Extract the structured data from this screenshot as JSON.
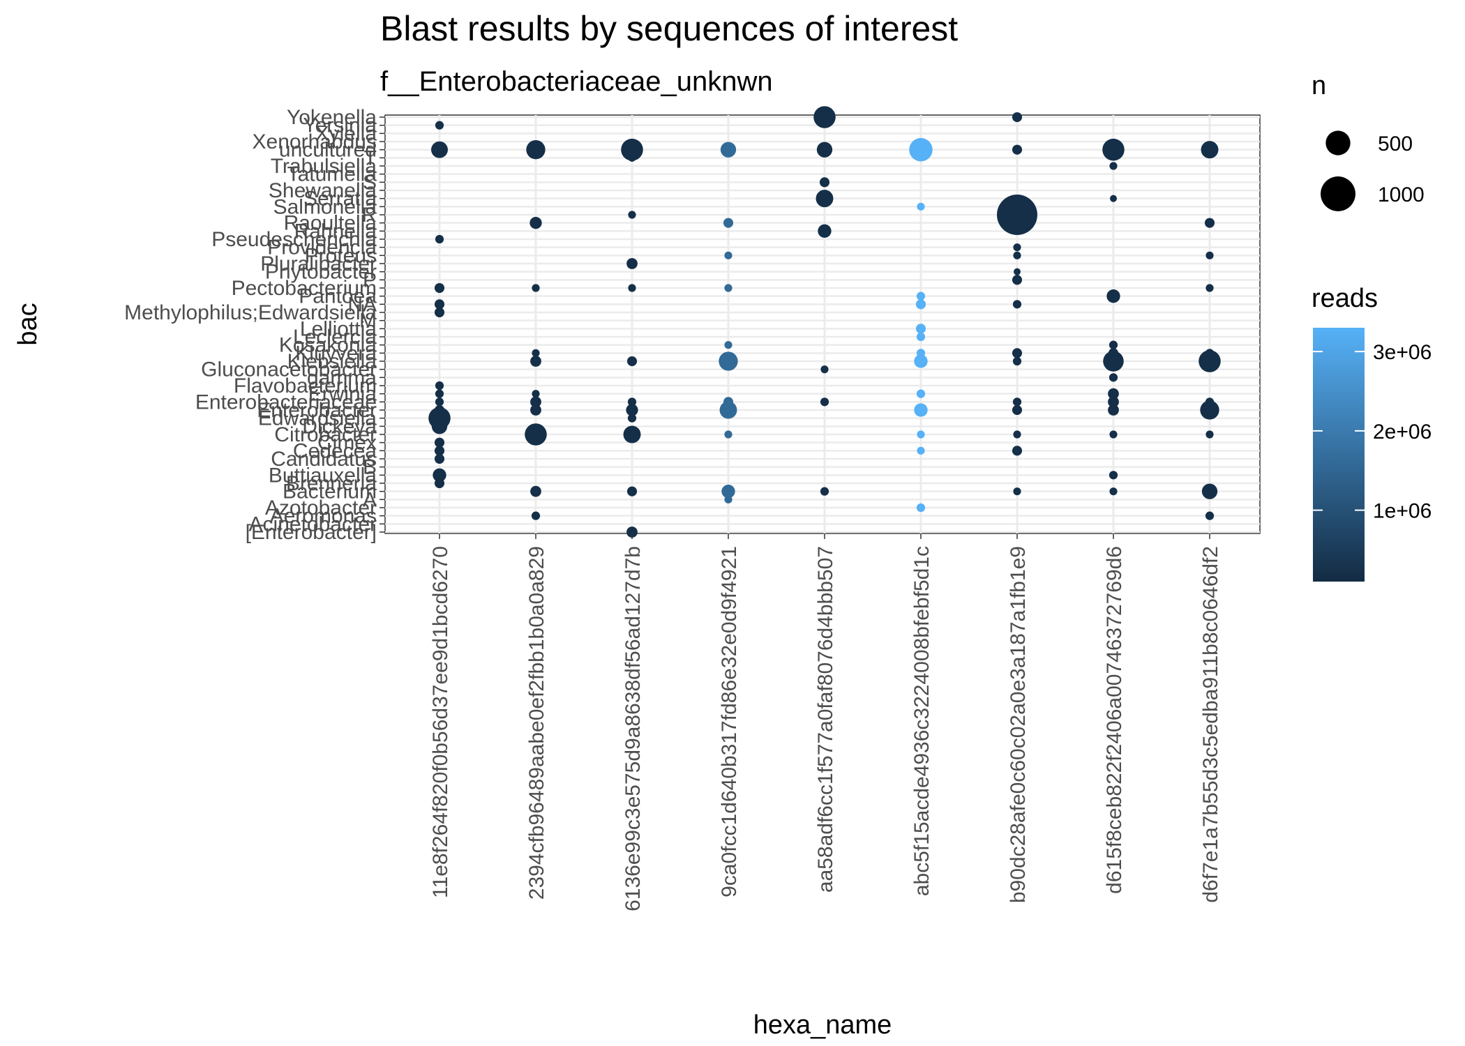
{
  "chart_data": {
    "type": "scatter",
    "title": "Blast results by sequences of interest",
    "subtitle": "f__Enterobacteriaceae_unknwn",
    "xlabel": "hexa_name",
    "ylabel": "bac",
    "grid": true,
    "legend_placement": "right",
    "x_categories": [
      "11e8f264f820f0b56d37ee9d1bcd6270",
      "2394cfb96489aabe0ef2fbb1b0a0a829",
      "6136e99c3e575d9a8638df56ad127d7b",
      "9ca0fcc1d640b317fd86e32e0d9f4921",
      "aa58adf6cc1f577a0faf8076d4bbb507",
      "abc5f15acde4936c3224008bfebf5d1c",
      "b90dc28afe0c60c02a0e3a187a1fb1e9",
      "d615f8ceb822f2406a00746372769d6",
      "d6f7e1a7b55d3c5edba911b8c0646df2"
    ],
    "y_categories": [
      "[Enterobacter]",
      "Acinetobacter",
      "Aeromonas",
      "Azotobacter",
      "A",
      "Bacterium",
      "Brenneria",
      "Buttiauxella",
      "B",
      "Candidatus",
      "Cedecea",
      "Cimex",
      "Citrobacter",
      "Dickeya",
      "Edwardsiella",
      "Enterobacter",
      "Enterobacteriaceae",
      "Erwinia",
      "Flavobacterium",
      "gamma",
      "Gluconacetobacter",
      "Klebsiella",
      "Kluyvera",
      "Kosakonia",
      "Leclercia",
      "Lelliottia",
      "M",
      "Methylophilus;Edwardsiella",
      "NA",
      "Pantoea",
      "Pectobacterium",
      "P",
      "Phytobacter",
      "Pluralibacter",
      "Proteus",
      "Providencia",
      "Pseudescherichia",
      "Rahnella",
      "Raoultella",
      "R",
      "Salmonella",
      "Serratia",
      "Shewanella",
      "S",
      "Tatumella",
      "Trabulsiella",
      "T",
      "uncultured",
      "Xenorhabdus",
      "Xylella",
      "Yersinia",
      "Yokenella"
    ],
    "size_legend": {
      "title": "n",
      "breaks": [
        500,
        1000
      ]
    },
    "color_legend": {
      "title": "reads",
      "breaks": [
        1000000,
        2000000,
        3000000
      ],
      "labels": [
        "1e+06",
        "2e+06",
        "3e+06"
      ],
      "range": [
        100000,
        3300000
      ],
      "low_color": "#132B43",
      "high_color": "#56B1F7"
    },
    "points": [
      {
        "x": "11e8f264f820f0b56d37ee9d1bcd6270",
        "y": "Yersinia",
        "n": 60,
        "reads": 200000
      },
      {
        "x": "11e8f264f820f0b56d37ee9d1bcd6270",
        "y": "uncultured",
        "n": 230,
        "reads": 200000
      },
      {
        "x": "11e8f264f820f0b56d37ee9d1bcd6270",
        "y": "Pseudescherichia",
        "n": 60,
        "reads": 200000
      },
      {
        "x": "11e8f264f820f0b56d37ee9d1bcd6270",
        "y": "Pectobacterium",
        "n": 80,
        "reads": 200000
      },
      {
        "x": "11e8f264f820f0b56d37ee9d1bcd6270",
        "y": "NA",
        "n": 80,
        "reads": 200000
      },
      {
        "x": "11e8f264f820f0b56d37ee9d1bcd6270",
        "y": "Methylophilus;Edwardsiella",
        "n": 80,
        "reads": 200000
      },
      {
        "x": "11e8f264f820f0b56d37ee9d1bcd6270",
        "y": "Flavobacterium",
        "n": 60,
        "reads": 200000
      },
      {
        "x": "11e8f264f820f0b56d37ee9d1bcd6270",
        "y": "Erwinia",
        "n": 60,
        "reads": 200000
      },
      {
        "x": "11e8f264f820f0b56d37ee9d1bcd6270",
        "y": "Enterobacteriaceae",
        "n": 60,
        "reads": 200000
      },
      {
        "x": "11e8f264f820f0b56d37ee9d1bcd6270",
        "y": "Enterobacter",
        "n": 80,
        "reads": 200000
      },
      {
        "x": "11e8f264f820f0b56d37ee9d1bcd6270",
        "y": "Edwardsiella",
        "n": 400,
        "reads": 200000
      },
      {
        "x": "11e8f264f820f0b56d37ee9d1bcd6270",
        "y": "Dickeya",
        "n": 200,
        "reads": 200000
      },
      {
        "x": "11e8f264f820f0b56d37ee9d1bcd6270",
        "y": "Cimex",
        "n": 80,
        "reads": 200000
      },
      {
        "x": "11e8f264f820f0b56d37ee9d1bcd6270",
        "y": "Cedecea",
        "n": 80,
        "reads": 200000
      },
      {
        "x": "11e8f264f820f0b56d37ee9d1bcd6270",
        "y": "Candidatus",
        "n": 80,
        "reads": 200000
      },
      {
        "x": "11e8f264f820f0b56d37ee9d1bcd6270",
        "y": "Buttiauxella",
        "n": 150,
        "reads": 200000
      },
      {
        "x": "11e8f264f820f0b56d37ee9d1bcd6270",
        "y": "Brenneria",
        "n": 80,
        "reads": 200000
      },
      {
        "x": "2394cfb96489aabe0ef2fbb1b0a0a829",
        "y": "uncultured",
        "n": 300,
        "reads": 200000
      },
      {
        "x": "2394cfb96489aabe0ef2fbb1b0a0a829",
        "y": "Raoultella",
        "n": 120,
        "reads": 200000
      },
      {
        "x": "2394cfb96489aabe0ef2fbb1b0a0a829",
        "y": "Pectobacterium",
        "n": 50,
        "reads": 200000
      },
      {
        "x": "2394cfb96489aabe0ef2fbb1b0a0a829",
        "y": "Kluyvera",
        "n": 50,
        "reads": 200000
      },
      {
        "x": "2394cfb96489aabe0ef2fbb1b0a0a829",
        "y": "Klebsiella",
        "n": 100,
        "reads": 200000
      },
      {
        "x": "2394cfb96489aabe0ef2fbb1b0a0a829",
        "y": "Erwinia",
        "n": 50,
        "reads": 200000
      },
      {
        "x": "2394cfb96489aabe0ef2fbb1b0a0a829",
        "y": "Enterobacteriaceae",
        "n": 100,
        "reads": 200000
      },
      {
        "x": "2394cfb96489aabe0ef2fbb1b0a0a829",
        "y": "Enterobacter",
        "n": 100,
        "reads": 200000
      },
      {
        "x": "2394cfb96489aabe0ef2fbb1b0a0a829",
        "y": "Citrobacter",
        "n": 400,
        "reads": 200000
      },
      {
        "x": "2394cfb96489aabe0ef2fbb1b0a0a829",
        "y": "Bacterium",
        "n": 100,
        "reads": 200000
      },
      {
        "x": "2394cfb96489aabe0ef2fbb1b0a0a829",
        "y": "Aeromonas",
        "n": 60,
        "reads": 200000
      },
      {
        "x": "6136e99c3e575d9a8638df56ad127d7b",
        "y": "uncultured",
        "n": 400,
        "reads": 200000
      },
      {
        "x": "6136e99c3e575d9a8638df56ad127d7b",
        "y": "T",
        "n": 50,
        "reads": 200000
      },
      {
        "x": "6136e99c3e575d9a8638df56ad127d7b",
        "y": "R",
        "n": 50,
        "reads": 200000
      },
      {
        "x": "6136e99c3e575d9a8638df56ad127d7b",
        "y": "Pluralibacter",
        "n": 100,
        "reads": 200000
      },
      {
        "x": "6136e99c3e575d9a8638df56ad127d7b",
        "y": "Pectobacterium",
        "n": 50,
        "reads": 200000
      },
      {
        "x": "6136e99c3e575d9a8638df56ad127d7b",
        "y": "Klebsiella",
        "n": 80,
        "reads": 200000
      },
      {
        "x": "6136e99c3e575d9a8638df56ad127d7b",
        "y": "Enterobacteriaceae",
        "n": 60,
        "reads": 200000
      },
      {
        "x": "6136e99c3e575d9a8638df56ad127d7b",
        "y": "Enterobacter",
        "n": 120,
        "reads": 200000
      },
      {
        "x": "6136e99c3e575d9a8638df56ad127d7b",
        "y": "Edwardsiella",
        "n": 60,
        "reads": 200000
      },
      {
        "x": "6136e99c3e575d9a8638df56ad127d7b",
        "y": "Citrobacter",
        "n": 250,
        "reads": 200000
      },
      {
        "x": "6136e99c3e575d9a8638df56ad127d7b",
        "y": "Bacterium",
        "n": 80,
        "reads": 200000
      },
      {
        "x": "6136e99c3e575d9a8638df56ad127d7b",
        "y": "[Enterobacter]",
        "n": 100,
        "reads": 200000
      },
      {
        "x": "9ca0fcc1d640b317fd86e32e0d9f4921",
        "y": "uncultured",
        "n": 200,
        "reads": 1600000
      },
      {
        "x": "9ca0fcc1d640b317fd86e32e0d9f4921",
        "y": "Raoultella",
        "n": 80,
        "reads": 1600000
      },
      {
        "x": "9ca0fcc1d640b317fd86e32e0d9f4921",
        "y": "Proteus",
        "n": 50,
        "reads": 1600000
      },
      {
        "x": "9ca0fcc1d640b317fd86e32e0d9f4921",
        "y": "Pectobacterium",
        "n": 50,
        "reads": 1600000
      },
      {
        "x": "9ca0fcc1d640b317fd86e32e0d9f4921",
        "y": "Kosakonia",
        "n": 50,
        "reads": 1600000
      },
      {
        "x": "9ca0fcc1d640b317fd86e32e0d9f4921",
        "y": "Klebsiella",
        "n": 300,
        "reads": 1600000
      },
      {
        "x": "9ca0fcc1d640b317fd86e32e0d9f4921",
        "y": "Enterobacteriaceae",
        "n": 80,
        "reads": 1600000
      },
      {
        "x": "9ca0fcc1d640b317fd86e32e0d9f4921",
        "y": "Enterobacter",
        "n": 250,
        "reads": 1600000
      },
      {
        "x": "9ca0fcc1d640b317fd86e32e0d9f4921",
        "y": "Citrobacter",
        "n": 50,
        "reads": 1600000
      },
      {
        "x": "9ca0fcc1d640b317fd86e32e0d9f4921",
        "y": "Bacterium",
        "n": 150,
        "reads": 1600000
      },
      {
        "x": "9ca0fcc1d640b317fd86e32e0d9f4921",
        "y": "A",
        "n": 50,
        "reads": 1600000
      },
      {
        "x": "aa58adf6cc1f577a0faf8076d4bbb507",
        "y": "Yokenella",
        "n": 400,
        "reads": 200000
      },
      {
        "x": "aa58adf6cc1f577a0faf8076d4bbb507",
        "y": "uncultured",
        "n": 200,
        "reads": 200000
      },
      {
        "x": "aa58adf6cc1f577a0faf8076d4bbb507",
        "y": "S",
        "n": 80,
        "reads": 200000
      },
      {
        "x": "aa58adf6cc1f577a0faf8076d4bbb507",
        "y": "Serratia",
        "n": 250,
        "reads": 200000
      },
      {
        "x": "aa58adf6cc1f577a0faf8076d4bbb507",
        "y": "Rahnella",
        "n": 150,
        "reads": 200000
      },
      {
        "x": "aa58adf6cc1f577a0faf8076d4bbb507",
        "y": "Gluconacetobacter",
        "n": 50,
        "reads": 200000
      },
      {
        "x": "aa58adf6cc1f577a0faf8076d4bbb507",
        "y": "Enterobacteriaceae",
        "n": 60,
        "reads": 200000
      },
      {
        "x": "aa58adf6cc1f577a0faf8076d4bbb507",
        "y": "Bacterium",
        "n": 60,
        "reads": 200000
      },
      {
        "x": "abc5f15acde4936c3224008bfebf5d1c",
        "y": "uncultured",
        "n": 450,
        "reads": 3300000
      },
      {
        "x": "abc5f15acde4936c3224008bfebf5d1c",
        "y": "Salmonella",
        "n": 50,
        "reads": 3300000
      },
      {
        "x": "abc5f15acde4936c3224008bfebf5d1c",
        "y": "Pantoea",
        "n": 60,
        "reads": 3300000
      },
      {
        "x": "abc5f15acde4936c3224008bfebf5d1c",
        "y": "NA",
        "n": 80,
        "reads": 3300000
      },
      {
        "x": "abc5f15acde4936c3224008bfebf5d1c",
        "y": "Lelliottia",
        "n": 80,
        "reads": 3300000
      },
      {
        "x": "abc5f15acde4936c3224008bfebf5d1c",
        "y": "Leclercia",
        "n": 60,
        "reads": 3300000
      },
      {
        "x": "abc5f15acde4936c3224008bfebf5d1c",
        "y": "Kluyvera",
        "n": 60,
        "reads": 3300000
      },
      {
        "x": "abc5f15acde4936c3224008bfebf5d1c",
        "y": "Klebsiella",
        "n": 150,
        "reads": 3300000
      },
      {
        "x": "abc5f15acde4936c3224008bfebf5d1c",
        "y": "Erwinia",
        "n": 60,
        "reads": 3300000
      },
      {
        "x": "abc5f15acde4936c3224008bfebf5d1c",
        "y": "Enterobacter",
        "n": 150,
        "reads": 3300000
      },
      {
        "x": "abc5f15acde4936c3224008bfebf5d1c",
        "y": "Citrobacter",
        "n": 50,
        "reads": 3300000
      },
      {
        "x": "abc5f15acde4936c3224008bfebf5d1c",
        "y": "Cedecea",
        "n": 50,
        "reads": 3300000
      },
      {
        "x": "abc5f15acde4936c3224008bfebf5d1c",
        "y": "Azotobacter",
        "n": 60,
        "reads": 3300000
      },
      {
        "x": "b90dc28afe0c60c02a0e3a187a1fb1e9",
        "y": "Yokenella",
        "n": 80,
        "reads": 200000
      },
      {
        "x": "b90dc28afe0c60c02a0e3a187a1fb1e9",
        "y": "uncultured",
        "n": 80,
        "reads": 200000
      },
      {
        "x": "b90dc28afe0c60c02a0e3a187a1fb1e9",
        "y": "R",
        "n": 1350,
        "reads": 200000
      },
      {
        "x": "b90dc28afe0c60c02a0e3a187a1fb1e9",
        "y": "Providencia",
        "n": 50,
        "reads": 200000
      },
      {
        "x": "b90dc28afe0c60c02a0e3a187a1fb1e9",
        "y": "Proteus",
        "n": 50,
        "reads": 200000
      },
      {
        "x": "b90dc28afe0c60c02a0e3a187a1fb1e9",
        "y": "Phytobacter",
        "n": 40,
        "reads": 200000
      },
      {
        "x": "b90dc28afe0c60c02a0e3a187a1fb1e9",
        "y": "P",
        "n": 80,
        "reads": 200000
      },
      {
        "x": "b90dc28afe0c60c02a0e3a187a1fb1e9",
        "y": "NA",
        "n": 60,
        "reads": 200000
      },
      {
        "x": "b90dc28afe0c60c02a0e3a187a1fb1e9",
        "y": "Kluyvera",
        "n": 80,
        "reads": 200000
      },
      {
        "x": "b90dc28afe0c60c02a0e3a187a1fb1e9",
        "y": "Klebsiella",
        "n": 60,
        "reads": 200000
      },
      {
        "x": "b90dc28afe0c60c02a0e3a187a1fb1e9",
        "y": "Enterobacteriaceae",
        "n": 60,
        "reads": 200000
      },
      {
        "x": "b90dc28afe0c60c02a0e3a187a1fb1e9",
        "y": "Enterobacter",
        "n": 80,
        "reads": 200000
      },
      {
        "x": "b90dc28afe0c60c02a0e3a187a1fb1e9",
        "y": "Citrobacter",
        "n": 50,
        "reads": 200000
      },
      {
        "x": "b90dc28afe0c60c02a0e3a187a1fb1e9",
        "y": "Cedecea",
        "n": 80,
        "reads": 200000
      },
      {
        "x": "b90dc28afe0c60c02a0e3a187a1fb1e9",
        "y": "Bacterium",
        "n": 50,
        "reads": 200000
      },
      {
        "x": "d615f8ceb822f2406a00746372769d6",
        "y": "uncultured",
        "n": 400,
        "reads": 200000
      },
      {
        "x": "d615f8ceb822f2406a00746372769d6",
        "y": "Trabulsiella",
        "n": 50,
        "reads": 200000
      },
      {
        "x": "d615f8ceb822f2406a00746372769d6",
        "y": "Serratia",
        "n": 40,
        "reads": 200000
      },
      {
        "x": "d615f8ceb822f2406a00746372769d6",
        "y": "Pantoea",
        "n": 150,
        "reads": 200000
      },
      {
        "x": "d615f8ceb822f2406a00746372769d6",
        "y": "Kosakonia",
        "n": 60,
        "reads": 200000
      },
      {
        "x": "d615f8ceb822f2406a00746372769d6",
        "y": "Kluyvera",
        "n": 80,
        "reads": 200000
      },
      {
        "x": "d615f8ceb822f2406a00746372769d6",
        "y": "Klebsiella",
        "n": 350,
        "reads": 200000
      },
      {
        "x": "d615f8ceb822f2406a00746372769d6",
        "y": "gamma",
        "n": 60,
        "reads": 200000
      },
      {
        "x": "d615f8ceb822f2406a00746372769d6",
        "y": "Erwinia",
        "n": 100,
        "reads": 200000
      },
      {
        "x": "d615f8ceb822f2406a00746372769d6",
        "y": "Enterobacteriaceae",
        "n": 100,
        "reads": 200000
      },
      {
        "x": "d615f8ceb822f2406a00746372769d6",
        "y": "Enterobacter",
        "n": 100,
        "reads": 200000
      },
      {
        "x": "d615f8ceb822f2406a00746372769d6",
        "y": "Citrobacter",
        "n": 50,
        "reads": 200000
      },
      {
        "x": "d615f8ceb822f2406a00746372769d6",
        "y": "Buttiauxella",
        "n": 60,
        "reads": 200000
      },
      {
        "x": "d615f8ceb822f2406a00746372769d6",
        "y": "Bacterium",
        "n": 50,
        "reads": 200000
      },
      {
        "x": "d6f7e1a7b55d3c5edba911b8c0646df2",
        "y": "uncultured",
        "n": 250,
        "reads": 200000
      },
      {
        "x": "d6f7e1a7b55d3c5edba911b8c0646df2",
        "y": "Raoultella",
        "n": 80,
        "reads": 200000
      },
      {
        "x": "d6f7e1a7b55d3c5edba911b8c0646df2",
        "y": "Proteus",
        "n": 50,
        "reads": 200000
      },
      {
        "x": "d6f7e1a7b55d3c5edba911b8c0646df2",
        "y": "Pectobacterium",
        "n": 50,
        "reads": 200000
      },
      {
        "x": "d6f7e1a7b55d3c5edba911b8c0646df2",
        "y": "Kluyvera",
        "n": 60,
        "reads": 200000
      },
      {
        "x": "d6f7e1a7b55d3c5edba911b8c0646df2",
        "y": "Klebsiella",
        "n": 400,
        "reads": 200000
      },
      {
        "x": "d6f7e1a7b55d3c5edba911b8c0646df2",
        "y": "Enterobacteriaceae",
        "n": 60,
        "reads": 200000
      },
      {
        "x": "d6f7e1a7b55d3c5edba911b8c0646df2",
        "y": "Enterobacter",
        "n": 300,
        "reads": 200000
      },
      {
        "x": "d6f7e1a7b55d3c5edba911b8c0646df2",
        "y": "Citrobacter",
        "n": 50,
        "reads": 200000
      },
      {
        "x": "d6f7e1a7b55d3c5edba911b8c0646df2",
        "y": "Bacterium",
        "n": 200,
        "reads": 200000
      },
      {
        "x": "d6f7e1a7b55d3c5edba911b8c0646df2",
        "y": "Aeromonas",
        "n": 60,
        "reads": 200000
      }
    ]
  }
}
